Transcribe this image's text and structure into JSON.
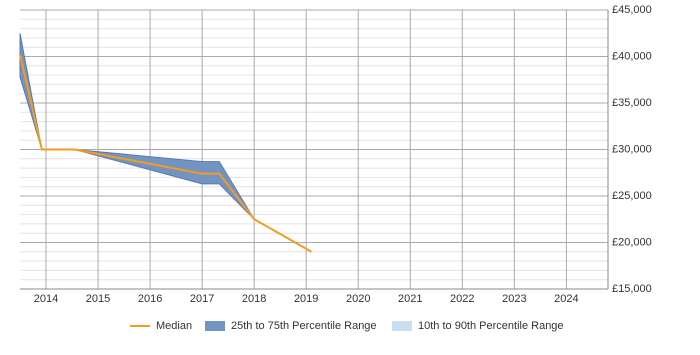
{
  "chart_data": {
    "type": "line",
    "x": [
      2013.5,
      2013.92,
      2014.55,
      2017.0,
      2017.33,
      2018.0,
      2019.1
    ],
    "xlim": [
      2013.5,
      2024.8
    ],
    "xticks": [
      2014,
      2015,
      2016,
      2017,
      2018,
      2019,
      2020,
      2021,
      2022,
      2023,
      2024
    ],
    "ylim": [
      15000,
      45000
    ],
    "yticks": [
      {
        "value": 15000,
        "label": "£15,000"
      },
      {
        "value": 20000,
        "label": "£20,000"
      },
      {
        "value": 25000,
        "label": "£25,000"
      },
      {
        "value": 30000,
        "label": "£30,000"
      },
      {
        "value": 35000,
        "label": "£35,000"
      },
      {
        "value": 40000,
        "label": "£40,000"
      },
      {
        "value": 45000,
        "label": "£45,000"
      }
    ],
    "yminorticks": [
      16000,
      17000,
      18000,
      19000,
      21000,
      22000,
      23000,
      24000,
      26000,
      27000,
      28000,
      29000,
      31000,
      32000,
      33000,
      34000,
      36000,
      37000,
      38000,
      39000,
      41000,
      42000,
      43000,
      44000
    ],
    "grid": true,
    "y_axis_side": "right",
    "legend": "bottom",
    "series": [
      {
        "name": "Median",
        "color": "#f39c1f",
        "values": [
          40200,
          30000,
          30000,
          27400,
          27400,
          22500,
          19000
        ]
      },
      {
        "name": "25th to 75th Percentile Range",
        "color": "#7394c2",
        "low": [
          37800,
          30000,
          30000,
          26300,
          26300,
          22500,
          null
        ],
        "high": [
          42500,
          30000,
          30000,
          28700,
          28700,
          22500,
          null
        ]
      },
      {
        "name": "10th to 90th Percentile Range",
        "color": "#c9ddf0",
        "low": [
          null,
          null,
          null,
          null,
          null,
          null,
          null
        ],
        "high": [
          null,
          null,
          null,
          null,
          null,
          null,
          null
        ]
      }
    ]
  }
}
